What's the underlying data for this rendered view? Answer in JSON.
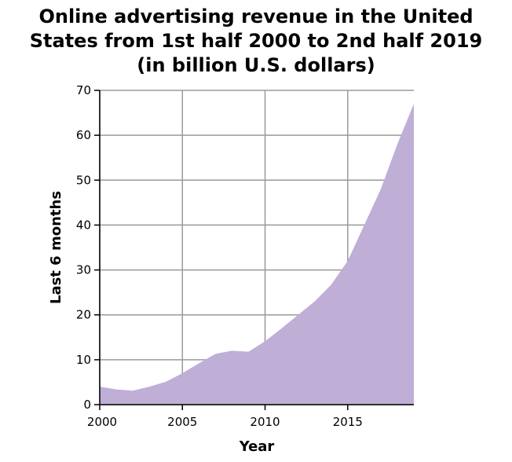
{
  "chart_data": {
    "type": "area",
    "title_lines": [
      "Online advertising revenue in the United",
      "States from 1st half 2000 to 2nd half 2019",
      "(in billion U.S. dollars)"
    ],
    "xlabel": "Year",
    "ylabel": "Last 6 months",
    "xlim": [
      2000,
      2019
    ],
    "ylim": [
      0,
      70
    ],
    "xticks": [
      2000,
      2005,
      2010,
      2015
    ],
    "yticks": [
      0,
      10,
      20,
      30,
      40,
      50,
      60,
      70
    ],
    "grid": true,
    "fill_color": "#bfaed6",
    "series": [
      {
        "x": [
          2000,
          2001,
          2002,
          2003,
          2004,
          2005,
          2006,
          2007,
          2008,
          2009,
          2010,
          2011,
          2012,
          2013,
          2014,
          2015,
          2016,
          2017,
          2018,
          2019
        ],
        "values": [
          4.0,
          3.4,
          3.1,
          4.0,
          5.1,
          7.0,
          9.2,
          11.3,
          12.0,
          11.8,
          14.1,
          17.0,
          20.0,
          23.0,
          26.7,
          32.0,
          40.0,
          48.0,
          58.0,
          67.0
        ]
      }
    ]
  }
}
